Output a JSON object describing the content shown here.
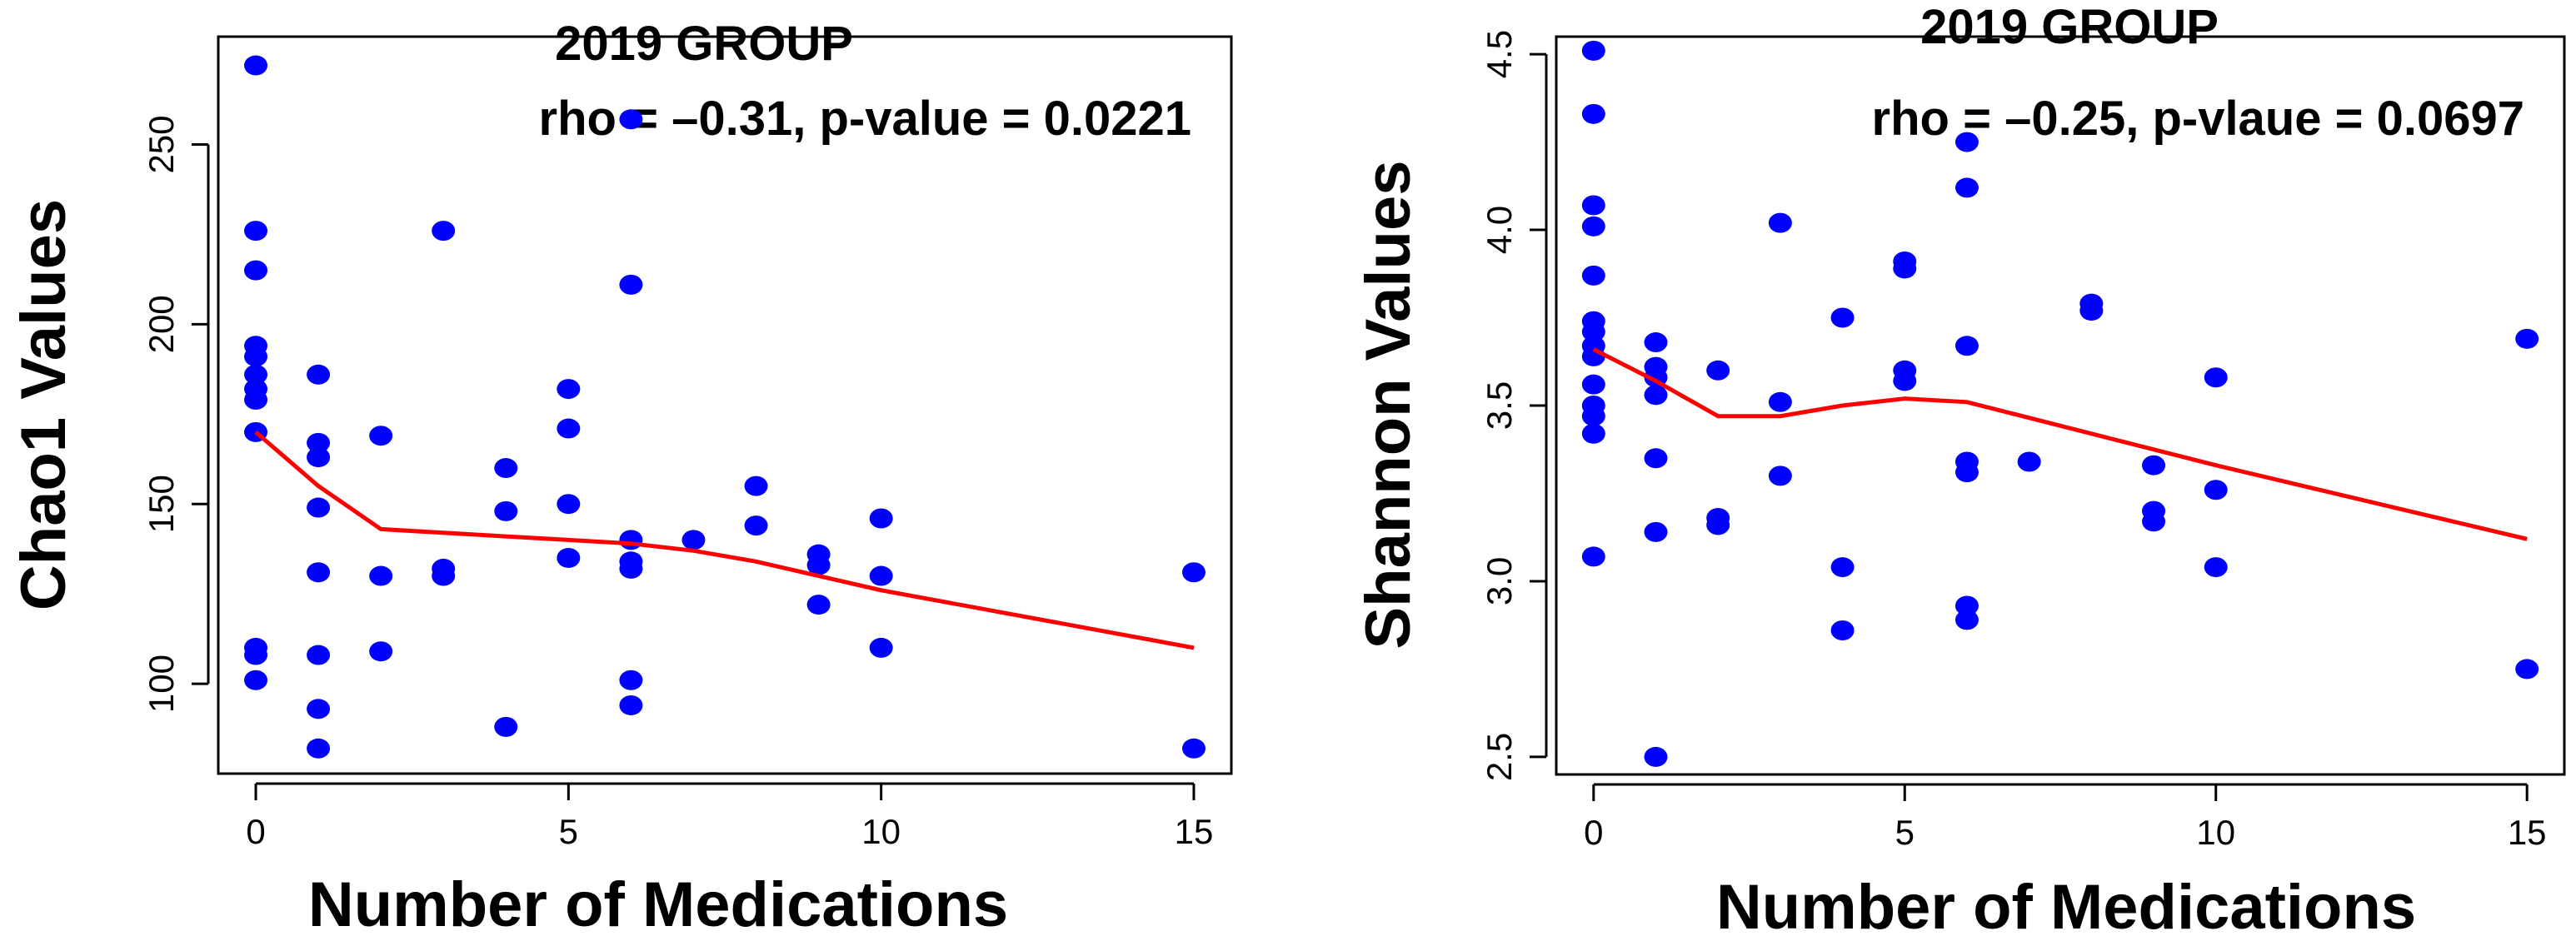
{
  "colors": {
    "points": "#0000ff",
    "trend": "#ff0000",
    "axis": "#000000"
  },
  "chart_data": [
    {
      "type": "scatter",
      "title": "2019 GROUP",
      "annotation": "rho = –0.31, p-value = 0.0221",
      "xlabel": "Number of Medications",
      "ylabel": "Chao1 Values",
      "xlim": [
        -0.6,
        15.6
      ],
      "ylim": [
        75,
        280
      ],
      "xticks": [
        0,
        5,
        10,
        15
      ],
      "yticks": [
        100,
        150,
        200,
        250
      ],
      "points": [
        [
          0,
          272
        ],
        [
          0,
          226
        ],
        [
          0,
          215
        ],
        [
          0,
          194
        ],
        [
          0,
          191
        ],
        [
          0,
          186
        ],
        [
          0,
          182
        ],
        [
          0,
          179
        ],
        [
          0,
          170
        ],
        [
          0,
          110
        ],
        [
          0,
          108
        ],
        [
          0,
          101
        ],
        [
          1,
          186
        ],
        [
          1,
          167
        ],
        [
          1,
          163
        ],
        [
          1,
          149
        ],
        [
          1,
          131
        ],
        [
          1,
          108
        ],
        [
          1,
          93
        ],
        [
          1,
          82
        ],
        [
          2,
          169
        ],
        [
          2,
          130
        ],
        [
          2,
          109
        ],
        [
          3,
          226
        ],
        [
          3,
          132
        ],
        [
          3,
          130
        ],
        [
          4,
          160
        ],
        [
          4,
          148
        ],
        [
          4,
          88
        ],
        [
          5,
          182
        ],
        [
          5,
          171
        ],
        [
          5,
          150
        ],
        [
          5,
          135
        ],
        [
          6,
          257
        ],
        [
          6,
          211
        ],
        [
          6,
          140
        ],
        [
          6,
          134
        ],
        [
          6,
          132
        ],
        [
          6,
          101
        ],
        [
          6,
          94
        ],
        [
          7,
          140
        ],
        [
          8,
          155
        ],
        [
          8,
          144
        ],
        [
          9,
          136
        ],
        [
          9,
          133
        ],
        [
          9,
          122
        ],
        [
          10,
          146
        ],
        [
          10,
          130
        ],
        [
          10,
          110
        ],
        [
          15,
          131
        ],
        [
          15,
          82
        ]
      ],
      "trend": [
        [
          0,
          170
        ],
        [
          1,
          155
        ],
        [
          2,
          143
        ],
        [
          3,
          142
        ],
        [
          4,
          141
        ],
        [
          5,
          140
        ],
        [
          6,
          139
        ],
        [
          7,
          137
        ],
        [
          8,
          134
        ],
        [
          9,
          130
        ],
        [
          10,
          126
        ],
        [
          15,
          110
        ]
      ]
    },
    {
      "type": "scatter",
      "title": "2019 GROUP",
      "annotation": "rho = –0.25, p-vlaue = 0.0697",
      "xlabel": "Number of Medications",
      "ylabel": "Shannon Values",
      "xlim": [
        -0.6,
        15.6
      ],
      "ylim": [
        2.45,
        4.55
      ],
      "xticks": [
        0,
        5,
        10,
        15
      ],
      "yticks": [
        2.5,
        3.0,
        3.5,
        4.0,
        4.5
      ],
      "points": [
        [
          0,
          4.51
        ],
        [
          0,
          4.33
        ],
        [
          0,
          4.07
        ],
        [
          0,
          4.01
        ],
        [
          0,
          3.87
        ],
        [
          0,
          3.74
        ],
        [
          0,
          3.71
        ],
        [
          0,
          3.67
        ],
        [
          0,
          3.64
        ],
        [
          0,
          3.56
        ],
        [
          0,
          3.5
        ],
        [
          0,
          3.47
        ],
        [
          0,
          3.42
        ],
        [
          0,
          3.07
        ],
        [
          1,
          3.68
        ],
        [
          1,
          3.61
        ],
        [
          1,
          3.58
        ],
        [
          1,
          3.53
        ],
        [
          1,
          3.35
        ],
        [
          1,
          3.14
        ],
        [
          1,
          2.5
        ],
        [
          2,
          3.6
        ],
        [
          2,
          3.18
        ],
        [
          2,
          3.16
        ],
        [
          3,
          4.02
        ],
        [
          3,
          3.51
        ],
        [
          3,
          3.3
        ],
        [
          4,
          3.75
        ],
        [
          4,
          3.04
        ],
        [
          4,
          2.86
        ],
        [
          5,
          3.91
        ],
        [
          5,
          3.89
        ],
        [
          5,
          3.6
        ],
        [
          5,
          3.57
        ],
        [
          6,
          4.25
        ],
        [
          6,
          4.12
        ],
        [
          6,
          3.67
        ],
        [
          6,
          3.34
        ],
        [
          6,
          3.31
        ],
        [
          6,
          2.93
        ],
        [
          6,
          2.89
        ],
        [
          7,
          3.34
        ],
        [
          8,
          3.79
        ],
        [
          8,
          3.77
        ],
        [
          9,
          3.33
        ],
        [
          9,
          3.2
        ],
        [
          9,
          3.17
        ],
        [
          10,
          3.58
        ],
        [
          10,
          3.26
        ],
        [
          10,
          3.04
        ],
        [
          15,
          3.69
        ],
        [
          15,
          2.75
        ]
      ],
      "trend": [
        [
          0,
          3.66
        ],
        [
          1,
          3.57
        ],
        [
          2,
          3.47
        ],
        [
          3,
          3.47
        ],
        [
          4,
          3.5
        ],
        [
          5,
          3.52
        ],
        [
          6,
          3.51
        ],
        [
          10,
          3.33
        ],
        [
          15,
          3.12
        ]
      ]
    }
  ]
}
